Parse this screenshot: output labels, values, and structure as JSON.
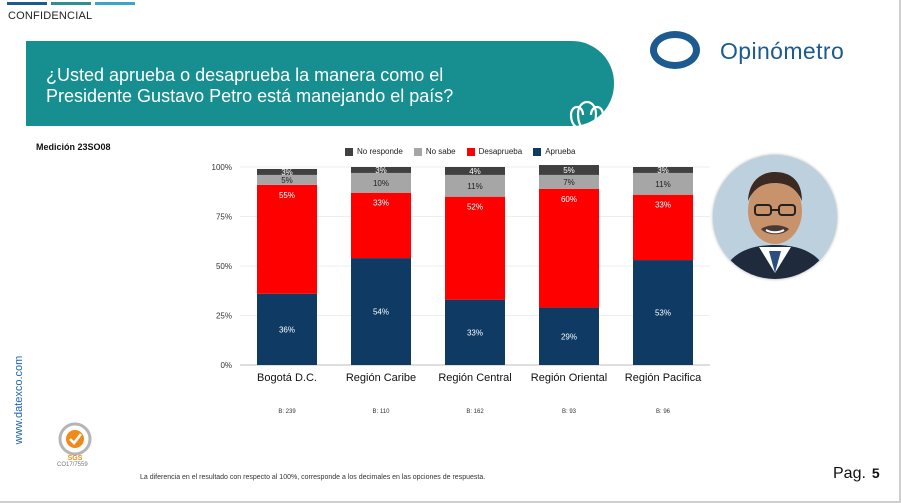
{
  "header": {
    "confidential": "CONFIDENCIAL",
    "topbar_colors": [
      "#1c5a8f",
      "#2e8f8f",
      "#3aa7c4"
    ]
  },
  "banner": {
    "question_line1": "¿Usted aprueba o desaprueba la manera como el",
    "question_line2": "Presidente Gustavo Petro está manejando el país?",
    "color": "#178f90",
    "icon": "people-group-icon"
  },
  "logo": {
    "text": "Opinómetro",
    "color": "#1c5a8f"
  },
  "medicion": "Medición 23SO08",
  "chart_data": {
    "type": "bar",
    "stacked": true,
    "categories": [
      "Bogotá D.C.",
      "Región Caribe",
      "Región Central",
      "Región Oriental",
      "Región Pacifica"
    ],
    "series": [
      {
        "name": "Aprueba",
        "color": "#0e3a63",
        "values": [
          36,
          54,
          33,
          29,
          53
        ]
      },
      {
        "name": "Desaprueba",
        "color": "#ff0000",
        "values": [
          55,
          33,
          52,
          60,
          33
        ]
      },
      {
        "name": "No sabe",
        "color": "#a6a6a6",
        "values": [
          5,
          10,
          11,
          7,
          11
        ]
      },
      {
        "name": "No responde",
        "color": "#404040",
        "values": [
          3,
          3,
          4,
          5,
          3
        ]
      }
    ],
    "legend_order": [
      "No responde",
      "No sabe",
      "Desaprueba",
      "Aprueba"
    ],
    "value_suffix": "%",
    "yticks": [
      "0%",
      "25%",
      "50%",
      "75%",
      "100%"
    ],
    "ylim": [
      0,
      100
    ],
    "base_labels": [
      "B: 239",
      "B: 110",
      "B: 162",
      "B: 93",
      "B: 96"
    ],
    "legend_position": "top"
  },
  "side_text": "www.datexco.com",
  "seal": {
    "label": "SGS",
    "code": "CO17/7559"
  },
  "footnote": "La diferencia en el resultado con respecto al 100%, corresponde a los decimales en las opciones de respuesta.",
  "page": {
    "label": "Pag.",
    "number": "5"
  }
}
